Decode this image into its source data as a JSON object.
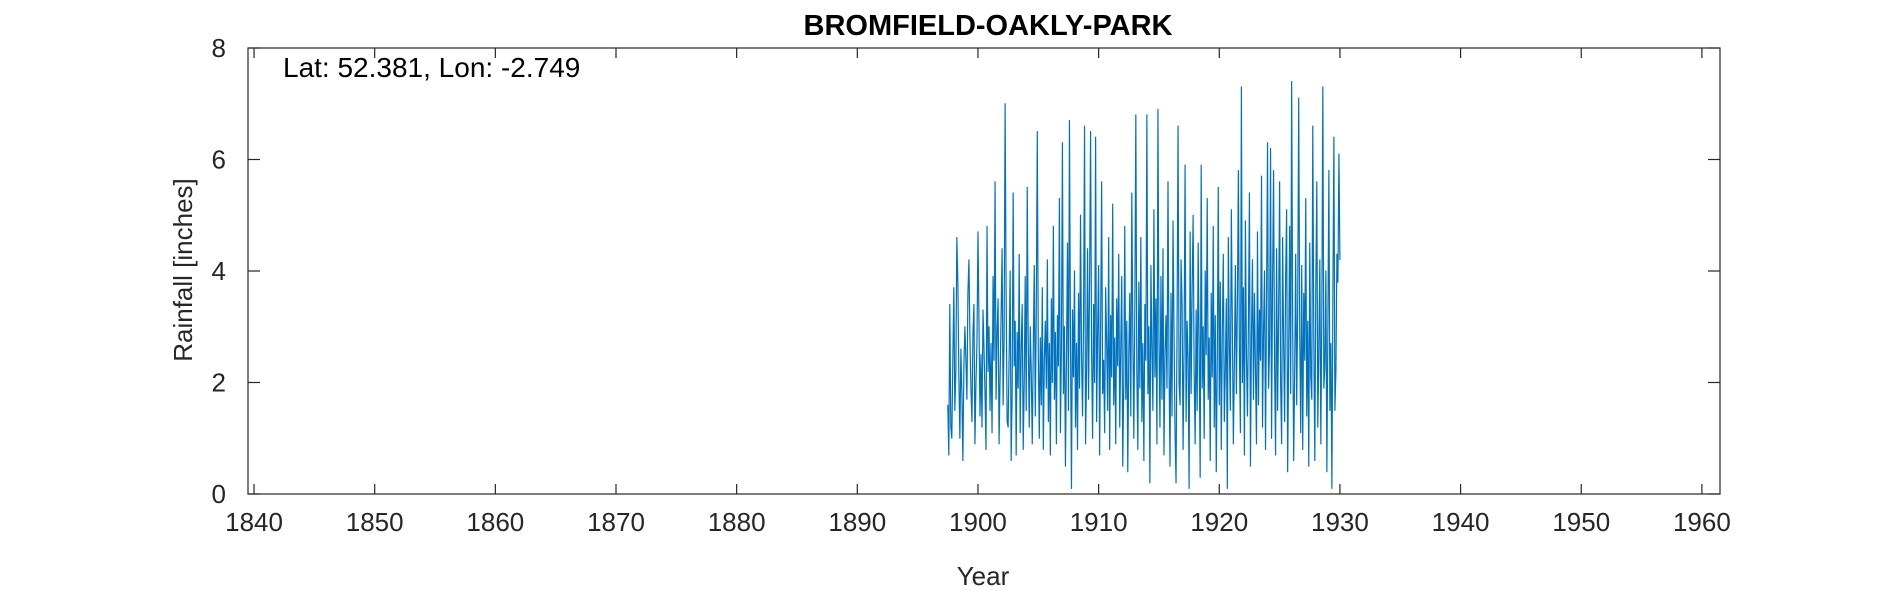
{
  "chart_data": {
    "type": "line",
    "title": "BROMFIELD-OAKLY-PARK",
    "annotation": "Lat: 52.381, Lon: -2.749",
    "xlabel": "Year",
    "ylabel": "Rainfall [inches]",
    "xlim": [
      1839.5,
      1961.5
    ],
    "ylim": [
      0,
      8
    ],
    "xticks": [
      1840,
      1850,
      1860,
      1870,
      1880,
      1890,
      1900,
      1910,
      1920,
      1930,
      1940,
      1950,
      1960
    ],
    "yticks": [
      0,
      2,
      4,
      6,
      8
    ],
    "grid": false,
    "series": [
      {
        "color": "#0072BD",
        "frequency": "monthly",
        "start_year": 1897.5,
        "values": [
          1.6,
          0.7,
          3.4,
          1.2,
          1.0,
          2.4,
          3.7,
          1.5,
          2.2,
          4.6,
          3.8,
          2.1,
          1.0,
          2.6,
          1.8,
          0.6,
          2.3,
          3.0,
          2.4,
          1.7,
          3.6,
          4.2,
          2.8,
          1.9,
          1.3,
          2.9,
          3.4,
          0.9,
          2.0,
          2.7,
          4.7,
          3.1,
          1.4,
          2.5,
          1.2,
          3.3,
          2.6,
          1.8,
          0.8,
          4.8,
          2.2,
          3.0,
          1.5,
          2.7,
          1.1,
          3.9,
          2.4,
          5.6,
          1.7,
          2.9,
          3.5,
          0.9,
          2.1,
          3.2,
          4.4,
          1.6,
          2.8,
          7.0,
          3.6,
          1.3,
          1.2,
          2.5,
          4.0,
          0.6,
          1.8,
          5.4,
          2.3,
          3.1,
          0.7,
          2.9,
          1.9,
          4.3,
          1.1,
          2.6,
          3.4,
          0.8,
          2.0,
          3.9,
          1.5,
          5.5,
          2.7,
          1.2,
          3.0,
          2.2,
          0.9,
          2.6,
          4.1,
          1.4,
          3.3,
          6.5,
          2.5,
          1.0,
          2.8,
          1.6,
          3.7,
          0.8,
          2.4,
          3.1,
          1.9,
          4.2,
          1.3,
          2.7,
          0.7,
          3.5,
          2.0,
          4.8,
          1.7,
          2.9,
          0.9,
          3.2,
          2.3,
          5.3,
          1.1,
          2.6,
          6.3,
          1.8,
          3.0,
          0.5,
          2.4,
          4.5,
          1.5,
          6.7,
          2.8,
          0.1,
          3.3,
          2.1,
          4.0,
          1.2,
          2.7,
          0.8,
          3.6,
          1.9,
          5.0,
          2.5,
          1.4,
          3.1,
          6.6,
          0.9,
          2.2,
          4.4,
          1.7,
          3.8,
          6.5,
          2.6,
          1.0,
          3.4,
          2.0,
          6.4,
          1.3,
          2.9,
          4.1,
          0.7,
          3.0,
          5.6,
          1.8,
          2.4,
          1.1,
          3.7,
          2.7,
          1.5,
          4.6,
          0.8,
          3.2,
          2.1,
          5.2,
          1.6,
          2.8,
          0.9,
          3.5,
          2.3,
          4.3,
          1.2,
          2.6,
          3.9,
          0.5,
          2.0,
          4.8,
          1.7,
          3.1,
          0.4,
          2.5,
          3.6,
          1.4,
          5.4,
          2.9,
          1.0,
          3.3,
          6.8,
          2.2,
          0.8,
          3.8,
          1.9,
          4.6,
          1.3,
          2.7,
          0.6,
          3.4,
          2.4,
          6.8,
          1.8,
          3.0,
          0.2,
          4.1,
          2.6,
          1.5,
          5.1,
          2.1,
          3.5,
          0.9,
          6.9,
          2.8,
          1.2,
          3.9,
          1.7,
          4.4,
          0.7,
          2.5,
          3.2,
          1.9,
          5.6,
          2.3,
          0.5,
          3.6,
          1.4,
          4.9,
          2.9,
          1.1,
          0.2,
          3.0,
          6.6,
          2.0,
          1.6,
          4.2,
          3.4,
          0.8,
          2.7,
          5.9,
          1.3,
          3.1,
          2.4,
          0.1,
          4.7,
          1.8,
          3.7,
          5.0,
          2.2,
          0.9,
          3.3,
          1.5,
          4.5,
          2.6,
          0.3,
          5.9,
          1.9,
          3.0,
          1.0,
          4.0,
          2.5,
          5.3,
          1.7,
          2.8,
          0.6,
          3.6,
          2.1,
          4.8,
          1.2,
          3.2,
          0.4,
          2.4,
          5.5,
          1.6,
          3.8,
          0.8,
          2.9,
          4.3,
          1.3,
          2.2,
          3.5,
          0.1,
          4.6,
          2.7,
          1.5,
          5.1,
          3.0,
          0.9,
          2.3,
          4.1,
          1.8,
          3.4,
          5.8,
          2.6,
          1.1,
          7.3,
          2.0,
          3.7,
          0.7,
          4.9,
          2.5,
          1.4,
          3.1,
          5.4,
          0.5,
          2.8,
          4.2,
          1.7,
          3.6,
          2.2,
          0.9,
          4.7,
          1.6,
          3.3,
          2.4,
          5.7,
          1.2,
          2.9,
          4.0,
          0.8,
          3.5,
          6.3,
          1.9,
          2.6,
          6.2,
          1.0,
          3.8,
          5.8,
          2.3,
          0.7,
          4.4,
          1.5,
          3.2,
          5.6,
          2.0,
          0.9,
          4.6,
          2.7,
          1.3,
          3.9,
          5.1,
          0.4,
          2.5,
          4.8,
          1.8,
          7.4,
          3.0,
          0.6,
          2.2,
          4.3,
          1.6,
          3.4,
          7.1,
          2.9,
          1.1,
          4.1,
          0.8,
          3.6,
          2.4,
          5.3,
          1.4,
          3.1,
          0.5,
          4.5,
          2.1,
          1.7,
          6.6,
          2.8,
          0.6,
          3.7,
          5.6,
          1.2,
          2.6,
          4.2,
          0.9,
          3.3,
          7.3,
          1.9,
          2.3,
          4.0,
          0.4,
          3.0,
          5.8,
          1.5,
          2.7,
          0.1,
          3.6,
          6.4,
          1.5,
          2.2,
          4.3,
          3.8,
          6.1,
          4.2
        ]
      }
    ]
  }
}
